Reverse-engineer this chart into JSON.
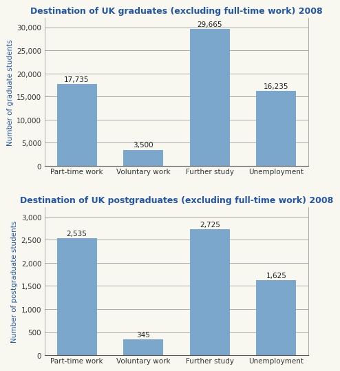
{
  "grad_title": "Destination of UK graduates (excluding full-time work) 2008",
  "postgrad_title": "Destination of UK postgraduates (excluding full-time work) 2008",
  "categories": [
    "Part-time work",
    "Voluntary work",
    "Further study",
    "Unemployment"
  ],
  "grad_values": [
    17735,
    3500,
    29665,
    16235
  ],
  "grad_labels": [
    "17,735",
    "3,500",
    "29,665",
    "16,235"
  ],
  "postgrad_values": [
    2535,
    345,
    2725,
    1625
  ],
  "postgrad_labels": [
    "2,535",
    "345",
    "2,725",
    "1,625"
  ],
  "bar_color": "#7BA7CC",
  "grad_ylabel": "Number of graduate students",
  "postgrad_ylabel": "Number of postgraduate students",
  "grad_ylim": [
    0,
    32000
  ],
  "grad_yticks": [
    0,
    5000,
    10000,
    15000,
    20000,
    25000,
    30000
  ],
  "postgrad_ylim": [
    0,
    3200
  ],
  "postgrad_yticks": [
    0,
    500,
    1000,
    1500,
    2000,
    2500,
    3000
  ],
  "title_color": "#2255AA",
  "ylabel_color": "#2255AA",
  "title_fontsize": 9,
  "label_fontsize": 7.5,
  "tick_fontsize": 7.5,
  "ylabel_fontsize": 7.5,
  "bg_color": "#F8F8F0"
}
